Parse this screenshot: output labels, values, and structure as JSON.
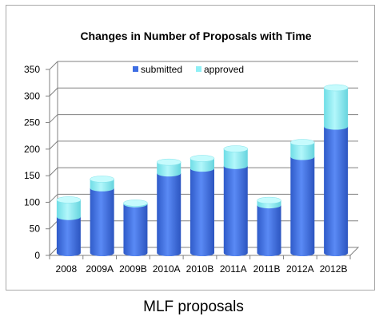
{
  "caption": "MLF proposals",
  "colors": {
    "submitted": "#3e6ee3",
    "approved": "#8ff0f6",
    "gridline": "#808080",
    "axis": "#808080"
  },
  "chart_data": {
    "type": "bar",
    "stacked": true,
    "title": "Changes in Number of Proposals with Time",
    "xlabel": "",
    "ylabel": "",
    "ylim": [
      0,
      350
    ],
    "yticks": [
      0,
      50,
      100,
      150,
      200,
      250,
      300,
      350
    ],
    "grid": true,
    "legend_position": "top-center",
    "categories": [
      "2008",
      "2009A",
      "2009B",
      "2010A",
      "2010B",
      "2011A",
      "2011B",
      "2012A",
      "2012B"
    ],
    "series": [
      {
        "name": "submitted",
        "values": [
          68,
          122,
          92,
          150,
          159,
          164,
          90,
          181,
          238
        ]
      },
      {
        "name": "approved",
        "values": [
          32,
          17,
          2,
          21,
          19,
          32,
          9,
          27,
          73
        ]
      }
    ]
  }
}
